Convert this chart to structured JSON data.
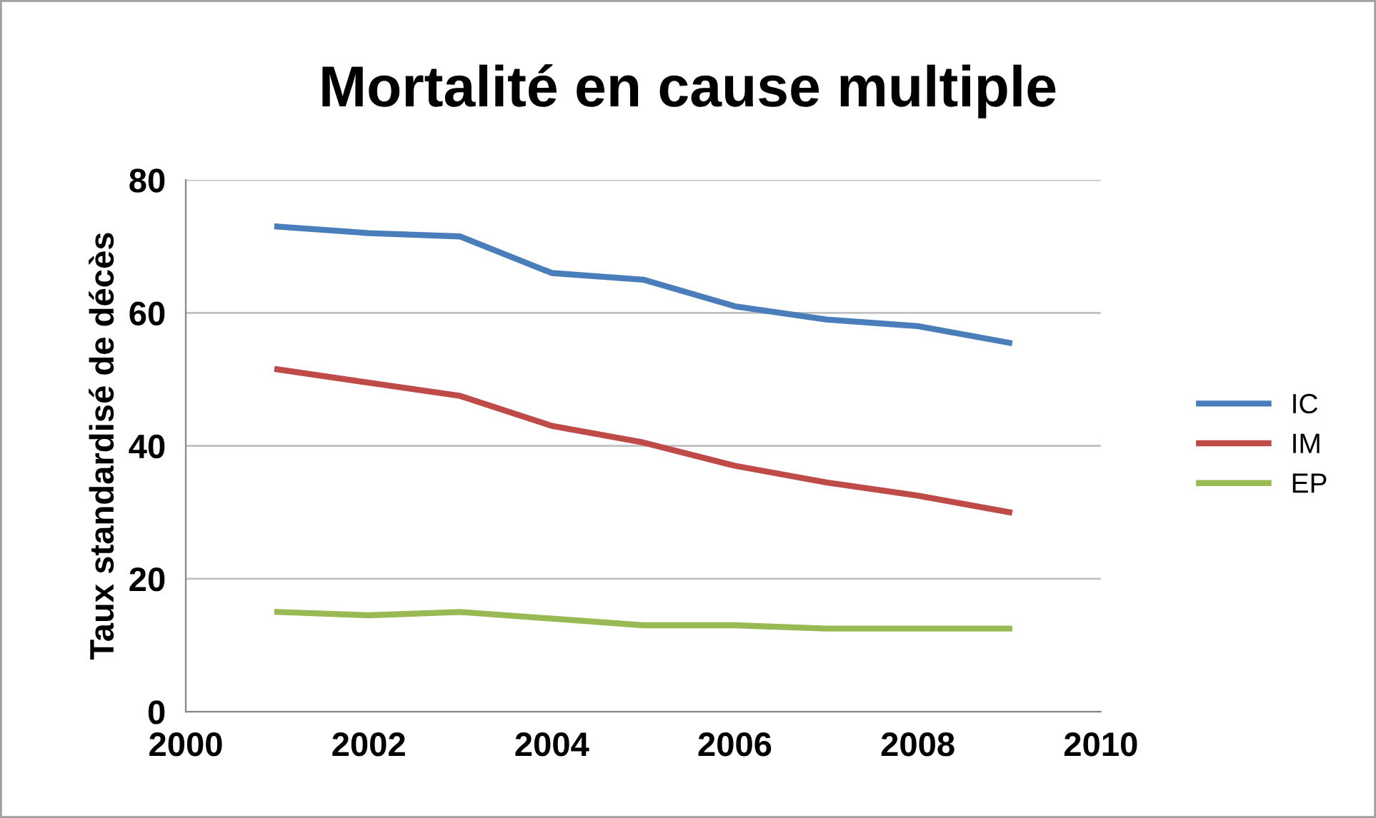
{
  "chart_data": {
    "type": "line",
    "title": "Mortalité en cause multiple",
    "ylabel": "Taux standardisé de décès",
    "x": [
      2001,
      2002,
      2003,
      2004,
      2005,
      2006,
      2007,
      2008,
      2009
    ],
    "series": [
      {
        "name": "IC",
        "color": "#4a7ebb",
        "values": [
          73,
          72,
          71.5,
          66,
          65,
          61,
          59,
          58,
          55.5
        ]
      },
      {
        "name": "IM",
        "color": "#be4b48",
        "values": [
          51.5,
          49.5,
          47.5,
          43,
          40.5,
          37,
          34.5,
          32.5,
          30
        ]
      },
      {
        "name": "EP",
        "color": "#98b954",
        "values": [
          15,
          14.5,
          15,
          14,
          13,
          13,
          12.5,
          12.5,
          12.5
        ]
      }
    ],
    "xlim": [
      2000,
      2010
    ],
    "xticks": [
      2000,
      2002,
      2004,
      2006,
      2008,
      2010
    ],
    "ylim": [
      0,
      80
    ],
    "yticks": [
      0,
      20,
      40,
      60,
      80
    ],
    "grid": "y",
    "legend": "right",
    "marker": "none",
    "line_style": "solid"
  }
}
